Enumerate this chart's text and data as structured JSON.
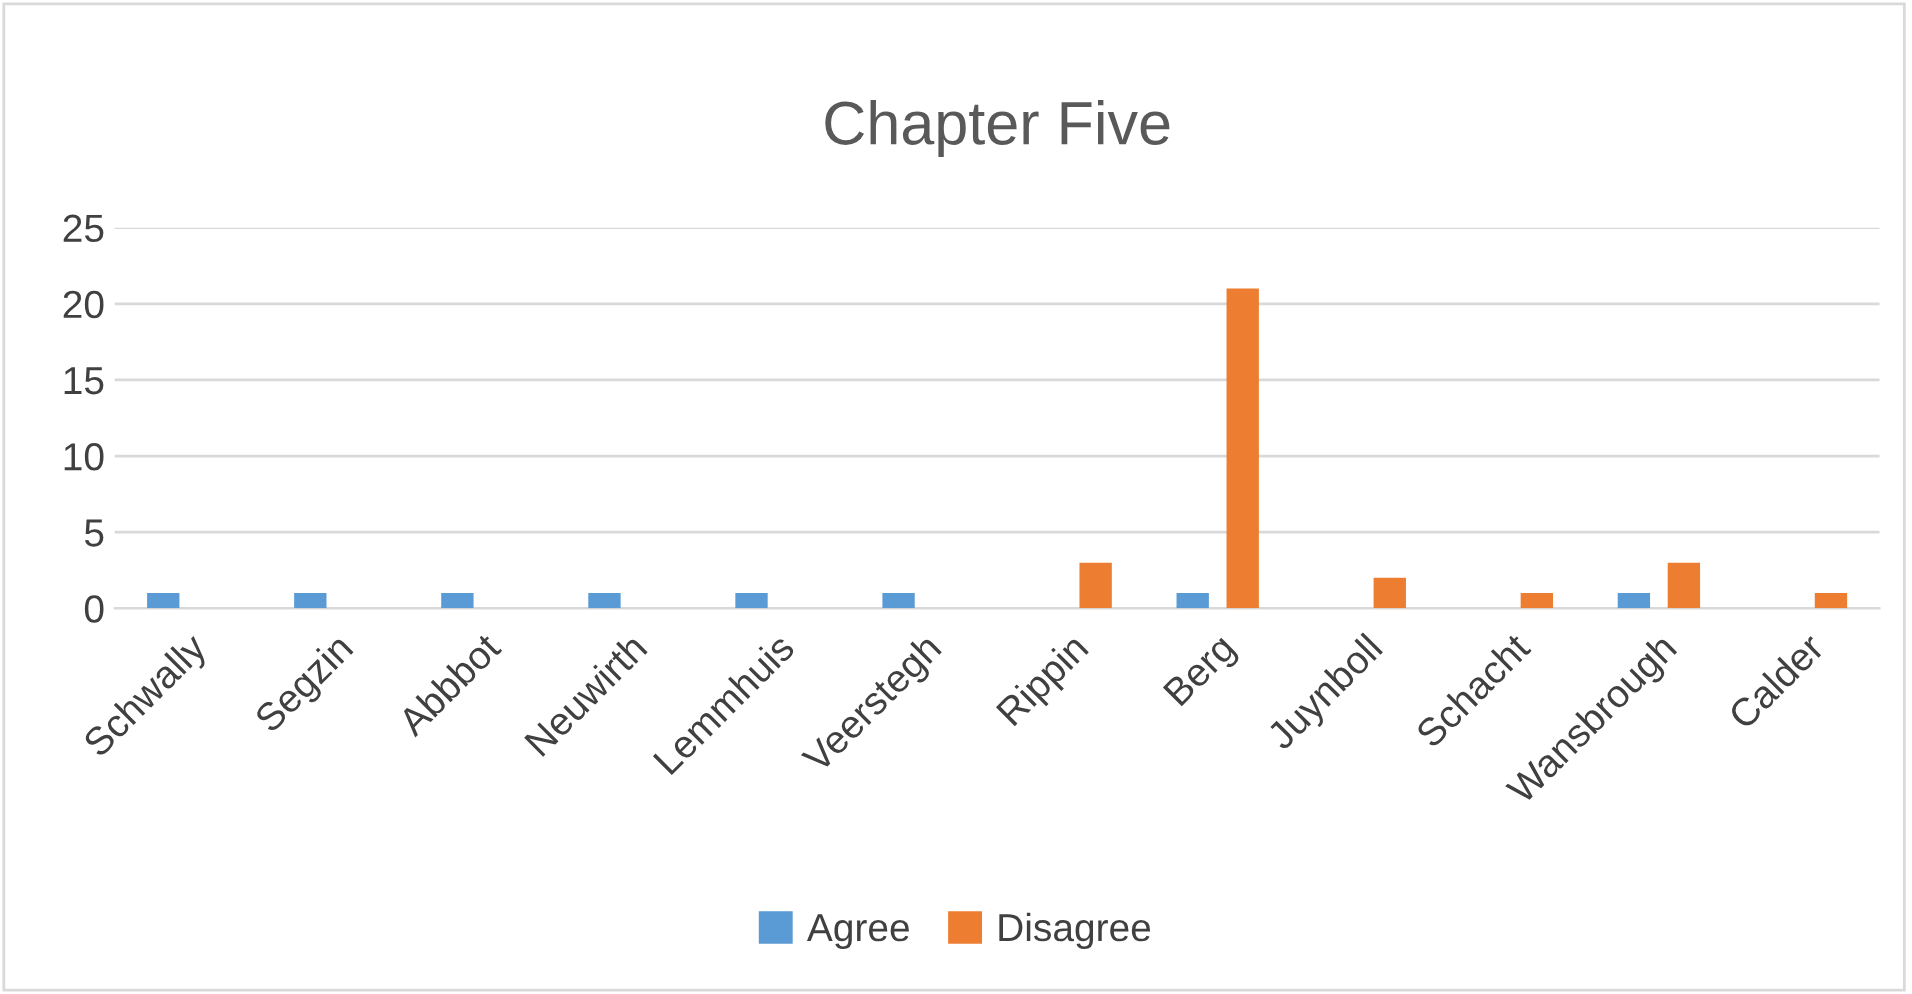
{
  "chart_data": {
    "type": "bar",
    "title": "Chapter Five",
    "categories": [
      "Schwally",
      "Segzin",
      "Abbbot",
      "Neuwirth",
      "Lemmhuis",
      "Veerstegh",
      "Rippin",
      "Berg",
      "Juynboll",
      "Schacht",
      "Wansbrough",
      "Calder"
    ],
    "series": [
      {
        "name": "Agree",
        "color": "#5b9bd5",
        "values": [
          1,
          1,
          1,
          1,
          1,
          1,
          null,
          1,
          null,
          null,
          1,
          null
        ]
      },
      {
        "name": "Disagree",
        "color": "#ed7d31",
        "values": [
          null,
          null,
          null,
          null,
          null,
          null,
          3,
          21,
          2,
          1,
          3,
          1
        ]
      }
    ],
    "ylim": [
      0,
      25
    ],
    "yticks": [
      0,
      5,
      10,
      15,
      20,
      25
    ],
    "grid": "y",
    "legend": "bottom"
  }
}
